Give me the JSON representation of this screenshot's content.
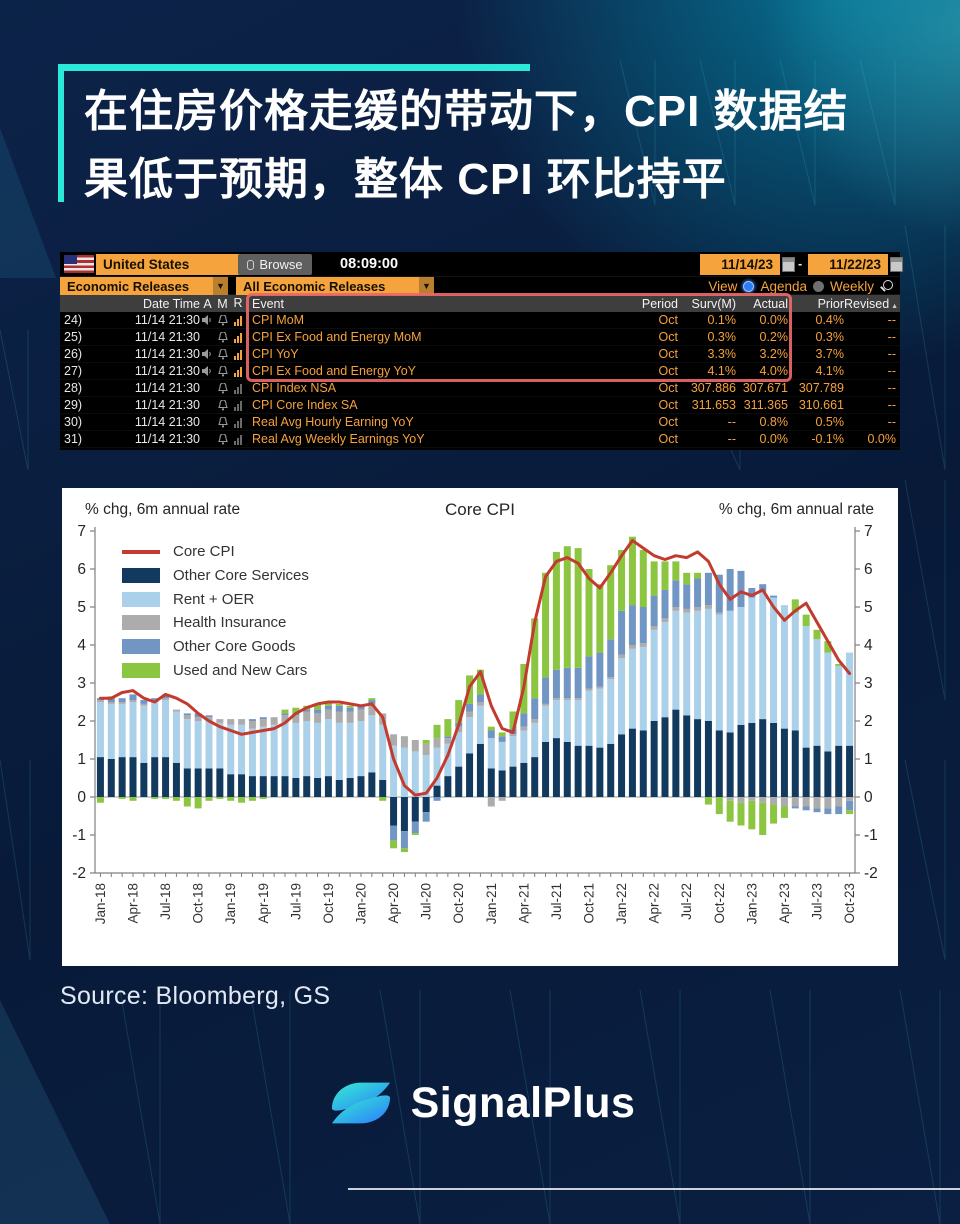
{
  "colors": {
    "accent_teal": "#2BE8D9",
    "glow_cyan": "#00E1FF",
    "bloomberg_amber": "#F5A33C",
    "highlight_red": "#E96868",
    "radio_selected_blue": "#2F7DF6",
    "logo_gradient_from": "#35F0D0",
    "logo_gradient_to": "#2B7BFF"
  },
  "title": {
    "line1": "在住房价格走缓的带动下，CPI 数据结",
    "line2": "果低于预期，整体 CPI 环比持平"
  },
  "terminal": {
    "country": "United States",
    "browse": "Browse",
    "time": "08:09:00",
    "date_from": "11/14/23",
    "date_sep": "-",
    "date_to": "11/22/23",
    "filter1": "Economic Releases",
    "filter2": "All Economic Releases",
    "view_label": "View",
    "agenda_label": "Agenda",
    "weekly_label": "Weekly",
    "columns": [
      "Date Time",
      "A",
      "M",
      "R",
      "Event",
      "Period",
      "Surv(M)",
      "Actual",
      "Prior",
      "Revised"
    ],
    "rows": [
      {
        "num": "24)",
        "date": "11/14 21:30",
        "speaker": true,
        "bell": true,
        "r": "bright",
        "event": "CPI MoM",
        "period": "Oct",
        "surv": "0.1%",
        "actual": "0.0%",
        "prior": "0.4%",
        "revised": "--"
      },
      {
        "num": "25)",
        "date": "11/14 21:30",
        "speaker": false,
        "bell": true,
        "r": "bright",
        "event": "CPI Ex Food and Energy MoM",
        "period": "Oct",
        "surv": "0.3%",
        "actual": "0.2%",
        "prior": "0.3%",
        "revised": "--"
      },
      {
        "num": "26)",
        "date": "11/14 21:30",
        "speaker": true,
        "bell": true,
        "r": "bright",
        "event": "CPI YoY",
        "period": "Oct",
        "surv": "3.3%",
        "actual": "3.2%",
        "prior": "3.7%",
        "revised": "--"
      },
      {
        "num": "27)",
        "date": "11/14 21:30",
        "speaker": true,
        "bell": true,
        "r": "bright",
        "event": "CPI Ex Food and Energy YoY",
        "period": "Oct",
        "surv": "4.1%",
        "actual": "4.0%",
        "prior": "4.1%",
        "revised": "--"
      },
      {
        "num": "28)",
        "date": "11/14 21:30",
        "speaker": false,
        "bell": true,
        "r": "dim",
        "event": "CPI Index NSA",
        "period": "Oct",
        "surv": "307.886",
        "actual": "307.671",
        "prior": "307.789",
        "revised": "--"
      },
      {
        "num": "29)",
        "date": "11/14 21:30",
        "speaker": false,
        "bell": true,
        "r": "dim",
        "event": "CPI Core Index SA",
        "period": "Oct",
        "surv": "311.653",
        "actual": "311.365",
        "prior": "310.661",
        "revised": "--"
      },
      {
        "num": "30)",
        "date": "11/14 21:30",
        "speaker": false,
        "bell": true,
        "r": "dim",
        "event": "Real Avg Hourly Earning YoY",
        "period": "Oct",
        "surv": "--",
        "actual": "0.8%",
        "prior": "0.5%",
        "revised": "--"
      },
      {
        "num": "31)",
        "date": "11/14 21:30",
        "speaker": false,
        "bell": true,
        "r": "dim",
        "event": "Real Avg Weekly Earnings YoY",
        "period": "Oct",
        "surv": "--",
        "actual": "0.0%",
        "prior": "-0.1%",
        "revised": "0.0%"
      }
    ]
  },
  "chart_data": {
    "type": "bar",
    "stacked": true,
    "overlay": "line",
    "title": "Core CPI",
    "left_axis_label": "% chg, 6m annual rate",
    "right_axis_label": "% chg, 6m annual rate",
    "ylim": [
      -2,
      7
    ],
    "yticks": [
      -2,
      -1,
      0,
      1,
      2,
      3,
      4,
      5,
      6,
      7
    ],
    "grid": "zero-line-only",
    "legend_position": "upper-left",
    "x_tick_every": 3,
    "x": [
      "Jan-18",
      "Feb-18",
      "Mar-18",
      "Apr-18",
      "May-18",
      "Jun-18",
      "Jul-18",
      "Aug-18",
      "Sep-18",
      "Oct-18",
      "Nov-18",
      "Dec-18",
      "Jan-19",
      "Feb-19",
      "Mar-19",
      "Apr-19",
      "May-19",
      "Jun-19",
      "Jul-19",
      "Aug-19",
      "Sep-19",
      "Oct-19",
      "Nov-19",
      "Dec-19",
      "Jan-20",
      "Feb-20",
      "Mar-20",
      "Apr-20",
      "May-20",
      "Jun-20",
      "Jul-20",
      "Aug-20",
      "Sep-20",
      "Oct-20",
      "Nov-20",
      "Dec-20",
      "Jan-21",
      "Feb-21",
      "Mar-21",
      "Apr-21",
      "May-21",
      "Jun-21",
      "Jul-21",
      "Aug-21",
      "Sep-21",
      "Oct-21",
      "Nov-21",
      "Dec-21",
      "Jan-22",
      "Feb-22",
      "Mar-22",
      "Apr-22",
      "May-22",
      "Jun-22",
      "Jul-22",
      "Aug-22",
      "Sep-22",
      "Oct-22",
      "Nov-22",
      "Dec-22",
      "Jan-23",
      "Feb-23",
      "Mar-23",
      "Apr-23",
      "May-23",
      "Jun-23",
      "Jul-23",
      "Aug-23",
      "Sep-23",
      "Oct-23"
    ],
    "series": [
      {
        "name": "Other Core Services",
        "color": "#123a5f",
        "values": [
          1.05,
          1.0,
          1.05,
          1.05,
          0.9,
          1.05,
          1.05,
          0.9,
          0.75,
          0.75,
          0.75,
          0.75,
          0.6,
          0.6,
          0.55,
          0.55,
          0.55,
          0.55,
          0.5,
          0.55,
          0.5,
          0.55,
          0.45,
          0.5,
          0.55,
          0.65,
          0.45,
          -0.75,
          -0.9,
          -0.65,
          -0.4,
          0.3,
          0.55,
          0.8,
          1.15,
          1.4,
          0.75,
          0.7,
          0.8,
          0.9,
          1.05,
          1.45,
          1.55,
          1.45,
          1.35,
          1.35,
          1.3,
          1.4,
          1.65,
          1.8,
          1.75,
          2.0,
          2.1,
          2.3,
          2.15,
          2.05,
          2.0,
          1.75,
          1.7,
          1.9,
          1.95,
          2.05,
          1.95,
          1.8,
          1.75,
          1.3,
          1.35,
          1.2,
          1.35,
          1.35
        ]
      },
      {
        "name": "Rent + OER",
        "color": "#abd0ea",
        "values": [
          1.45,
          1.45,
          1.4,
          1.45,
          1.5,
          1.45,
          1.5,
          1.35,
          1.3,
          1.25,
          1.25,
          1.2,
          1.3,
          1.3,
          1.25,
          1.3,
          1.35,
          1.4,
          1.45,
          1.45,
          1.45,
          1.5,
          1.5,
          1.45,
          1.45,
          1.5,
          1.45,
          1.35,
          1.3,
          1.2,
          1.1,
          1.0,
          0.85,
          0.9,
          0.95,
          1.0,
          0.8,
          0.75,
          0.8,
          0.85,
          0.9,
          0.95,
          1.0,
          1.1,
          1.2,
          1.45,
          1.55,
          1.7,
          2.0,
          2.1,
          2.2,
          2.4,
          2.5,
          2.6,
          2.7,
          2.85,
          2.95,
          3.05,
          3.2,
          3.1,
          3.3,
          3.35,
          3.3,
          3.25,
          3.1,
          3.2,
          2.8,
          2.6,
          2.1,
          2.45
        ]
      },
      {
        "name": "Health Insurance",
        "color": "#acacac",
        "values": [
          0.05,
          0.05,
          0.05,
          0.05,
          0.05,
          0.05,
          0.05,
          0.05,
          0.1,
          0.1,
          0.1,
          0.1,
          0.15,
          0.15,
          0.2,
          0.2,
          0.2,
          0.2,
          0.2,
          0.25,
          0.25,
          0.25,
          0.3,
          0.3,
          0.3,
          0.3,
          0.3,
          0.3,
          0.3,
          0.3,
          0.3,
          0.25,
          0.15,
          0.15,
          0.15,
          0.1,
          -0.25,
          -0.1,
          0.05,
          0.1,
          0.1,
          0.05,
          0.05,
          0.05,
          0.05,
          0.05,
          0.05,
          0.05,
          0.1,
          0.1,
          0.1,
          0.1,
          0.1,
          0.1,
          0.1,
          0.1,
          0.1,
          0.05,
          -0.1,
          -0.15,
          -0.1,
          -0.15,
          -0.2,
          -0.25,
          -0.25,
          -0.25,
          -0.3,
          -0.3,
          -0.25,
          -0.1
        ]
      },
      {
        "name": "Other Core Goods",
        "color": "#7296c4",
        "values": [
          0.05,
          0.1,
          0.1,
          0.15,
          0.1,
          0.05,
          0.1,
          0.0,
          0.05,
          0.1,
          0.05,
          0.0,
          0.0,
          0.0,
          0.05,
          0.05,
          0.0,
          0.05,
          0.05,
          0.05,
          0.1,
          0.1,
          0.15,
          0.1,
          0.1,
          0.1,
          0.0,
          -0.4,
          -0.45,
          -0.3,
          -0.25,
          -0.1,
          0.05,
          0.1,
          0.2,
          0.2,
          0.2,
          0.15,
          0.15,
          0.35,
          0.55,
          0.7,
          0.75,
          0.8,
          0.8,
          0.85,
          0.9,
          1.0,
          1.15,
          1.05,
          0.95,
          0.8,
          0.75,
          0.7,
          0.65,
          0.75,
          0.85,
          1.0,
          1.1,
          0.95,
          0.25,
          0.2,
          0.05,
          0.0,
          -0.05,
          -0.1,
          -0.1,
          -0.15,
          -0.2,
          -0.25
        ]
      },
      {
        "name": "Used and New Cars",
        "color": "#8cc540",
        "values": [
          -0.15,
          0.05,
          -0.05,
          -0.1,
          0.0,
          -0.05,
          -0.05,
          -0.1,
          -0.25,
          -0.3,
          -0.1,
          -0.05,
          -0.1,
          -0.15,
          -0.1,
          -0.05,
          0.0,
          0.1,
          0.15,
          0.1,
          0.15,
          0.1,
          0.05,
          0.05,
          0.0,
          0.05,
          -0.1,
          -0.2,
          -0.1,
          -0.05,
          0.1,
          0.35,
          0.45,
          0.6,
          0.75,
          0.65,
          0.1,
          0.1,
          0.45,
          1.3,
          2.1,
          2.75,
          3.1,
          3.2,
          3.15,
          2.3,
          1.8,
          1.95,
          1.6,
          1.8,
          1.5,
          0.9,
          0.75,
          0.5,
          0.3,
          0.15,
          -0.2,
          -0.45,
          -0.55,
          -0.6,
          -0.75,
          -0.85,
          -0.5,
          -0.3,
          0.35,
          0.3,
          0.25,
          0.3,
          0.05,
          -0.1
        ]
      }
    ],
    "line": {
      "name": "Core CPI",
      "color": "#c23b2e",
      "values": [
        2.6,
        2.6,
        2.75,
        2.8,
        2.6,
        2.5,
        2.7,
        2.6,
        2.45,
        2.2,
        2.0,
        1.85,
        1.75,
        1.65,
        1.7,
        1.75,
        1.8,
        1.95,
        2.2,
        2.35,
        2.45,
        2.5,
        2.5,
        2.45,
        2.4,
        2.45,
        2.1,
        1.0,
        0.3,
        0.05,
        0.1,
        0.5,
        1.1,
        1.9,
        2.9,
        3.3,
        2.4,
        1.8,
        1.7,
        2.9,
        4.6,
        5.8,
        6.2,
        6.3,
        6.15,
        5.75,
        5.5,
        5.9,
        6.35,
        6.75,
        6.55,
        6.35,
        6.25,
        6.35,
        6.3,
        6.45,
        6.2,
        5.6,
        5.2,
        5.4,
        5.3,
        5.45,
        5.0,
        4.65,
        4.9,
        5.1,
        4.6,
        4.1,
        3.6,
        3.25
      ]
    }
  },
  "source": "Source: Bloomberg, GS",
  "logo_text": "SignalPlus"
}
